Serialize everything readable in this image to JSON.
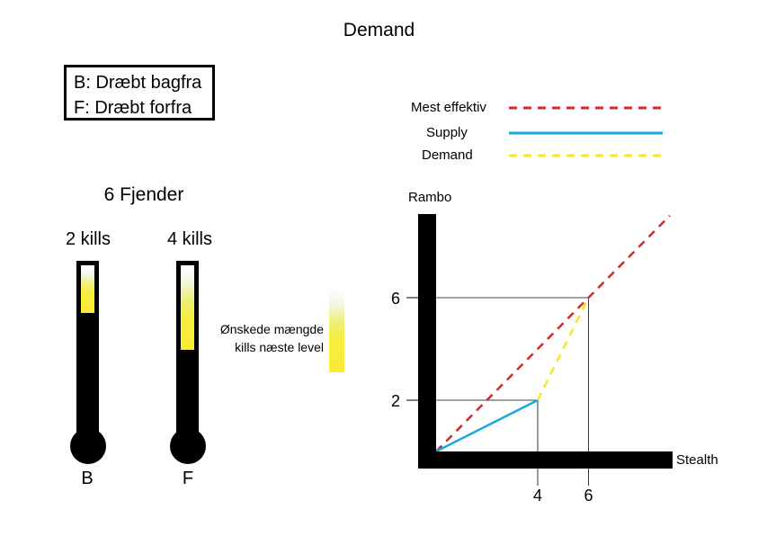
{
  "title": "Demand",
  "legend_box": {
    "line1": "B: Dræbt bagfra",
    "line2": "F: Dræbt forfra"
  },
  "enemies_label": "6 Fjender",
  "thermometers": [
    {
      "kills_label": "2 kills",
      "letter": "B",
      "fill_fraction": 0.45
    },
    {
      "kills_label": "4 kills",
      "letter": "F",
      "fill_fraction": 0.8
    }
  ],
  "desired_label": {
    "line1": "Ønskede mængde",
    "line2": "kills næste level"
  },
  "chart_legend": [
    {
      "label": "Mest effektiv",
      "color": "#d02a2a",
      "style": "dashed"
    },
    {
      "label": "Supply",
      "color": "#1aa6e0",
      "style": "solid"
    },
    {
      "label": "Demand",
      "color": "#f5e82a",
      "style": "dashed"
    }
  ],
  "chart_data": {
    "type": "line",
    "xlabel": "Stealth",
    "ylabel": "Rambo",
    "xticks": [
      "4",
      "6"
    ],
    "yticks": [
      "2",
      "6"
    ],
    "xlim": [
      0,
      9.2
    ],
    "ylim": [
      0,
      9.2
    ],
    "series": [
      {
        "name": "Mest effektiv",
        "x": [
          0,
          9.2
        ],
        "y": [
          0,
          9.2
        ],
        "color": "#d02a2a",
        "style": "dashed"
      },
      {
        "name": "Supply",
        "x": [
          0,
          4
        ],
        "y": [
          0,
          2
        ],
        "color": "#1aa6e0",
        "style": "solid"
      },
      {
        "name": "Demand",
        "x": [
          4,
          6
        ],
        "y": [
          2,
          6
        ],
        "color": "#f5e82a",
        "style": "dashed"
      }
    ],
    "reference_lines": [
      {
        "x": 4,
        "y": 2
      },
      {
        "x": 6,
        "y": 6
      }
    ]
  }
}
